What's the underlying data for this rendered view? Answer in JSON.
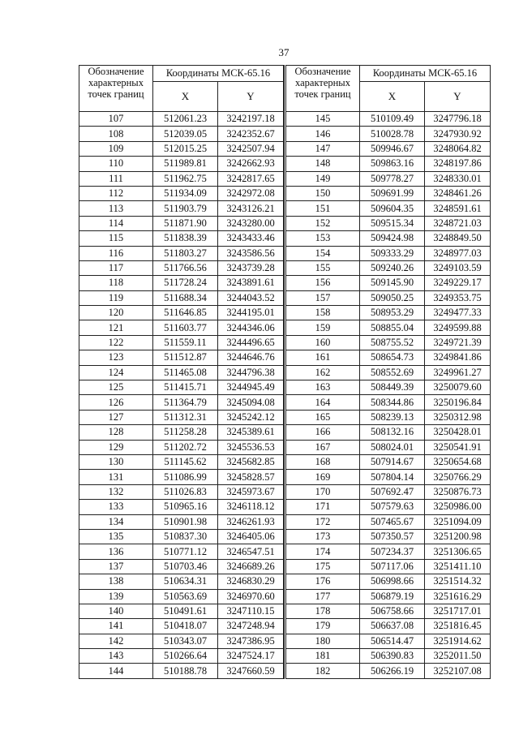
{
  "page_number": "37",
  "header": {
    "label_line1": "Обозначение",
    "label_rest": "характерных точек границ",
    "coord_system": "Координаты МСК-65.16",
    "x": "X",
    "y": "Y"
  },
  "left_table": [
    [
      "107",
      "512061.23",
      "3242197.18"
    ],
    [
      "108",
      "512039.05",
      "3242352.67"
    ],
    [
      "109",
      "512015.25",
      "3242507.94"
    ],
    [
      "110",
      "511989.81",
      "3242662.93"
    ],
    [
      "111",
      "511962.75",
      "3242817.65"
    ],
    [
      "112",
      "511934.09",
      "3242972.08"
    ],
    [
      "113",
      "511903.79",
      "3243126.21"
    ],
    [
      "114",
      "511871.90",
      "3243280.00"
    ],
    [
      "115",
      "511838.39",
      "3243433.46"
    ],
    [
      "116",
      "511803.27",
      "3243586.56"
    ],
    [
      "117",
      "511766.56",
      "3243739.28"
    ],
    [
      "118",
      "511728.24",
      "3243891.61"
    ],
    [
      "119",
      "511688.34",
      "3244043.52"
    ],
    [
      "120",
      "511646.85",
      "3244195.01"
    ],
    [
      "121",
      "511603.77",
      "3244346.06"
    ],
    [
      "122",
      "511559.11",
      "3244496.65"
    ],
    [
      "123",
      "511512.87",
      "3244646.76"
    ],
    [
      "124",
      "511465.08",
      "3244796.38"
    ],
    [
      "125",
      "511415.71",
      "3244945.49"
    ],
    [
      "126",
      "511364.79",
      "3245094.08"
    ],
    [
      "127",
      "511312.31",
      "3245242.12"
    ],
    [
      "128",
      "511258.28",
      "3245389.61"
    ],
    [
      "129",
      "511202.72",
      "3245536.53"
    ],
    [
      "130",
      "511145.62",
      "3245682.85"
    ],
    [
      "131",
      "511086.99",
      "3245828.57"
    ],
    [
      "132",
      "511026.83",
      "3245973.67"
    ],
    [
      "133",
      "510965.16",
      "3246118.12"
    ],
    [
      "134",
      "510901.98",
      "3246261.93"
    ],
    [
      "135",
      "510837.30",
      "3246405.06"
    ],
    [
      "136",
      "510771.12",
      "3246547.51"
    ],
    [
      "137",
      "510703.46",
      "3246689.26"
    ],
    [
      "138",
      "510634.31",
      "3246830.29"
    ],
    [
      "139",
      "510563.69",
      "3246970.60"
    ],
    [
      "140",
      "510491.61",
      "3247110.15"
    ],
    [
      "141",
      "510418.07",
      "3247248.94"
    ],
    [
      "142",
      "510343.07",
      "3247386.95"
    ],
    [
      "143",
      "510266.64",
      "3247524.17"
    ],
    [
      "144",
      "510188.78",
      "3247660.59"
    ]
  ],
  "right_table": [
    [
      "145",
      "510109.49",
      "3247796.18"
    ],
    [
      "146",
      "510028.78",
      "3247930.92"
    ],
    [
      "147",
      "509946.67",
      "3248064.82"
    ],
    [
      "148",
      "509863.16",
      "3248197.86"
    ],
    [
      "149",
      "509778.27",
      "3248330.01"
    ],
    [
      "150",
      "509691.99",
      "3248461.26"
    ],
    [
      "151",
      "509604.35",
      "3248591.61"
    ],
    [
      "152",
      "509515.34",
      "3248721.03"
    ],
    [
      "153",
      "509424.98",
      "3248849.50"
    ],
    [
      "154",
      "509333.29",
      "3248977.03"
    ],
    [
      "155",
      "509240.26",
      "3249103.59"
    ],
    [
      "156",
      "509145.90",
      "3249229.17"
    ],
    [
      "157",
      "509050.25",
      "3249353.75"
    ],
    [
      "158",
      "508953.29",
      "3249477.33"
    ],
    [
      "159",
      "508855.04",
      "3249599.88"
    ],
    [
      "160",
      "508755.52",
      "3249721.39"
    ],
    [
      "161",
      "508654.73",
      "3249841.86"
    ],
    [
      "162",
      "508552.69",
      "3249961.27"
    ],
    [
      "163",
      "508449.39",
      "3250079.60"
    ],
    [
      "164",
      "508344.86",
      "3250196.84"
    ],
    [
      "165",
      "508239.13",
      "3250312.98"
    ],
    [
      "166",
      "508132.16",
      "3250428.01"
    ],
    [
      "167",
      "508024.01",
      "3250541.91"
    ],
    [
      "168",
      "507914.67",
      "3250654.68"
    ],
    [
      "169",
      "507804.14",
      "3250766.29"
    ],
    [
      "170",
      "507692.47",
      "3250876.73"
    ],
    [
      "171",
      "507579.63",
      "3250986.00"
    ],
    [
      "172",
      "507465.67",
      "3251094.09"
    ],
    [
      "173",
      "507350.57",
      "3251200.98"
    ],
    [
      "174",
      "507234.37",
      "3251306.65"
    ],
    [
      "175",
      "507117.06",
      "3251411.10"
    ],
    [
      "176",
      "506998.66",
      "3251514.32"
    ],
    [
      "177",
      "506879.19",
      "3251616.29"
    ],
    [
      "178",
      "506758.66",
      "3251717.01"
    ],
    [
      "179",
      "506637.08",
      "3251816.45"
    ],
    [
      "180",
      "506514.47",
      "3251914.62"
    ],
    [
      "181",
      "506390.83",
      "3252011.50"
    ],
    [
      "182",
      "506266.19",
      "3252107.08"
    ]
  ]
}
